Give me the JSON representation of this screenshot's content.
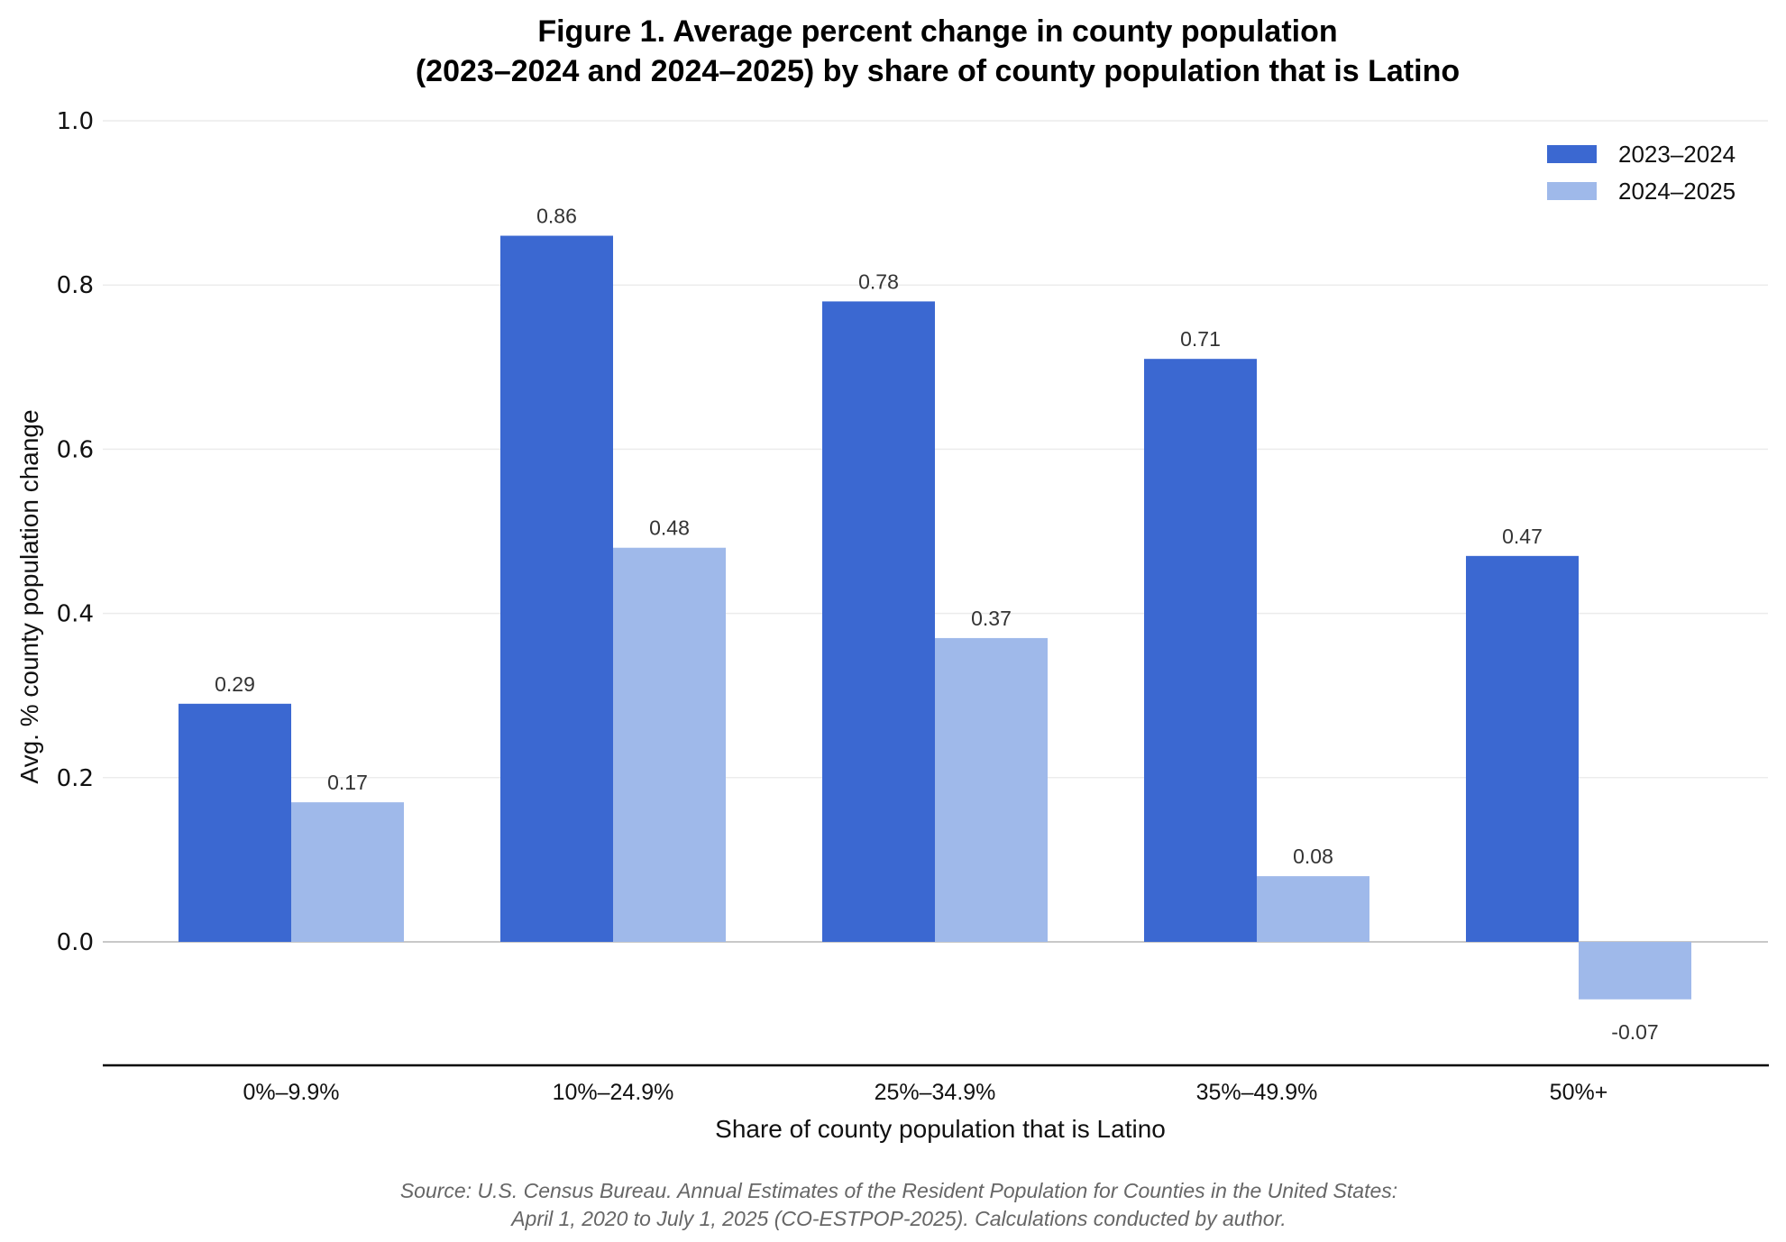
{
  "chart_data": {
    "type": "bar",
    "title": [
      "Figure 1. Average percent change in county population",
      "(2023–2024 and 2024–2025) by share of county population that is Latino"
    ],
    "xlabel": "Share of county population that is Latino",
    "ylabel": "Avg. % county population change",
    "categories": [
      "0%–9.9%",
      "10%–24.9%",
      "25%–34.9%",
      "35%–49.9%",
      "50%+"
    ],
    "series": [
      {
        "name": "2023–2024",
        "color": "#3b68d1",
        "values": [
          0.29,
          0.86,
          0.78,
          0.71,
          0.47
        ]
      },
      {
        "name": "2024–2025",
        "color": "#9fb9ea",
        "values": [
          0.17,
          0.48,
          0.37,
          0.08,
          -0.07
        ]
      }
    ],
    "yticks": [
      "0.0",
      "0.2",
      "0.4",
      "0.6",
      "0.8",
      "1.0"
    ],
    "ytick_values": [
      0,
      0.2,
      0.4,
      0.6,
      0.8,
      1.0
    ],
    "ylim": [
      -0.15,
      1.0
    ],
    "grid": true,
    "legend_position": "top-right",
    "source": [
      "Source: U.S. Census Bureau. Annual Estimates of the Resident Population for Counties in the United States:",
      "April 1, 2020 to July 1, 2025 (CO-ESTPOP-2025). Calculations conducted by author."
    ]
  }
}
